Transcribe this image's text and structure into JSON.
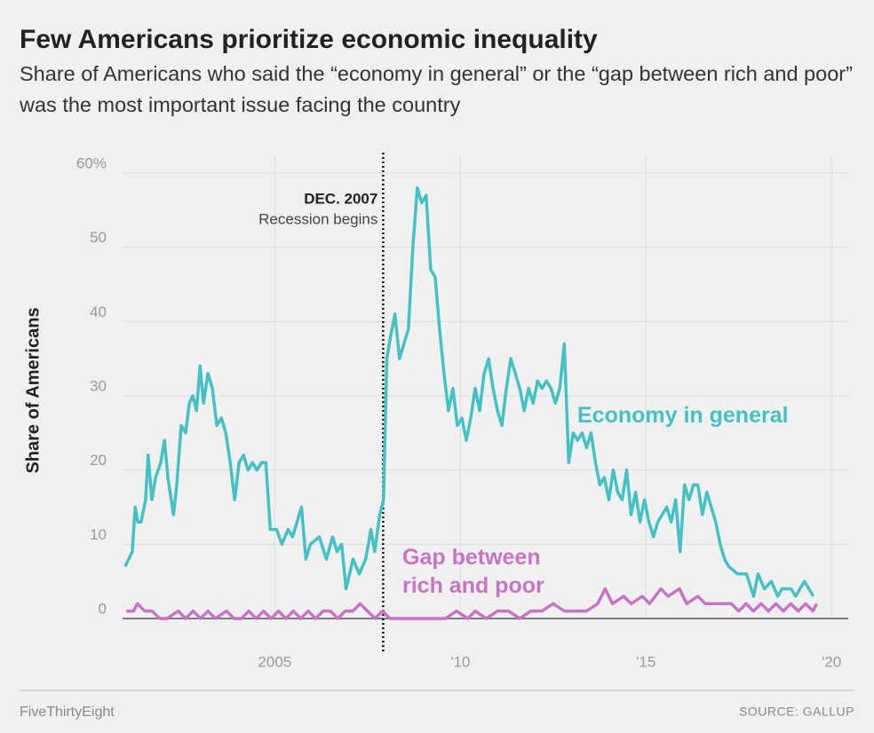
{
  "chart_data": {
    "type": "line",
    "title": "Few Americans prioritize economic inequality",
    "subtitle": "Share of Americans who said the “economy in general” or the “gap between rich and poor” was the most important issue facing the country",
    "y_label": "Share of Americans",
    "xlim": [
      2000.9,
      2020.45
    ],
    "xticks": [
      2005,
      {
        "value": 2010,
        "label": "'10"
      },
      {
        "value": 2015,
        "label": "'15"
      },
      {
        "value": 2020,
        "label": "'20"
      }
    ],
    "ylim": [
      0,
      60
    ],
    "yticks": [
      0,
      10,
      20,
      30,
      40,
      50,
      {
        "value": 60,
        "label": "60%"
      }
    ],
    "grid": true,
    "annotation": {
      "x": 2007.92,
      "title": "DEC. 2007",
      "text": "Recession begins"
    },
    "series": [
      {
        "name": "Economy in general",
        "color": "#45c1c4",
        "x": [
          2000.97,
          2001.16,
          2001.24,
          2001.31,
          2001.4,
          2001.52,
          2001.59,
          2001.69,
          2001.79,
          2001.93,
          2002.03,
          2002.12,
          2002.27,
          2002.36,
          2002.48,
          2002.6,
          2002.7,
          2002.79,
          2002.89,
          2002.99,
          2003.08,
          2003.2,
          2003.32,
          2003.44,
          2003.56,
          2003.68,
          2003.8,
          2003.92,
          2004.04,
          2004.16,
          2004.28,
          2004.4,
          2004.52,
          2004.64,
          2004.76,
          2004.88,
          2005.05,
          2005.19,
          2005.36,
          2005.48,
          2005.6,
          2005.72,
          2005.84,
          2005.96,
          2006.2,
          2006.39,
          2006.56,
          2006.68,
          2006.8,
          2006.92,
          2007.11,
          2007.28,
          2007.45,
          2007.59,
          2007.69,
          2007.83,
          2007.93,
          2008.02,
          2008.12,
          2008.24,
          2008.36,
          2008.48,
          2008.6,
          2008.72,
          2008.84,
          2008.96,
          2009.08,
          2009.2,
          2009.32,
          2009.44,
          2009.56,
          2009.68,
          2009.8,
          2009.92,
          2010.04,
          2010.16,
          2010.28,
          2010.4,
          2010.52,
          2010.64,
          2010.76,
          2010.88,
          2011.0,
          2011.12,
          2011.24,
          2011.36,
          2011.48,
          2011.6,
          2011.72,
          2011.84,
          2011.96,
          2012.08,
          2012.2,
          2012.32,
          2012.44,
          2012.56,
          2012.68,
          2012.8,
          2012.92,
          2013.04,
          2013.16,
          2013.28,
          2013.4,
          2013.52,
          2013.64,
          2013.76,
          2013.88,
          2014.0,
          2014.12,
          2014.24,
          2014.36,
          2014.48,
          2014.6,
          2014.72,
          2014.84,
          2014.96,
          2015.08,
          2015.2,
          2015.32,
          2015.44,
          2015.56,
          2015.68,
          2015.8,
          2015.92,
          2016.04,
          2016.16,
          2016.28,
          2016.4,
          2016.52,
          2016.64,
          2016.76,
          2016.88,
          2017.0,
          2017.12,
          2017.23,
          2017.47,
          2017.71,
          2017.9,
          2018.02,
          2018.19,
          2018.38,
          2018.55,
          2018.67,
          2018.91,
          2019.03,
          2019.15,
          2019.27,
          2019.39,
          2019.51
        ],
        "values": [
          7,
          9,
          15,
          13,
          13,
          16,
          22,
          16,
          19,
          21,
          24,
          19,
          14,
          18,
          26,
          25,
          29,
          30,
          28,
          34,
          29,
          33,
          31,
          26,
          27,
          25,
          21,
          16,
          21,
          22,
          20,
          21,
          20,
          21,
          21,
          12,
          12,
          10,
          12,
          11,
          13,
          15,
          8,
          10,
          11,
          8,
          11,
          9,
          10,
          4,
          8,
          6,
          8,
          12,
          9,
          14,
          16,
          35,
          38,
          41,
          35,
          37,
          39,
          50,
          58,
          56,
          57,
          47,
          46,
          39,
          33,
          28,
          31,
          26,
          27,
          24,
          27,
          31,
          28,
          33,
          35,
          31,
          28,
          26,
          31,
          35,
          33,
          31,
          28,
          31,
          29,
          32,
          31,
          32,
          31,
          29,
          31,
          37,
          21,
          25,
          24,
          25,
          23,
          25,
          21,
          18,
          19,
          16,
          20,
          17,
          16,
          20,
          14,
          17,
          13,
          16,
          13,
          11,
          13,
          14,
          15,
          13,
          16,
          9,
          18,
          16,
          18,
          18,
          14,
          17,
          15,
          13,
          10,
          8,
          7,
          6,
          6,
          3,
          6,
          4,
          5,
          3,
          4,
          4,
          3,
          4,
          5,
          4,
          3
        ]
      },
      {
        "name": "Gap between rich and poor",
        "color": "#c774c4",
        "x": [
          2001.0,
          2001.2,
          2001.3,
          2001.5,
          2001.7,
          2001.9,
          2002.1,
          2002.4,
          2002.6,
          2002.8,
          2003.0,
          2003.2,
          2003.4,
          2003.7,
          2003.9,
          2004.1,
          2004.3,
          2004.5,
          2004.7,
          2004.9,
          2005.1,
          2005.3,
          2005.5,
          2005.7,
          2005.9,
          2006.1,
          2006.3,
          2006.5,
          2006.7,
          2006.9,
          2007.1,
          2007.3,
          2007.5,
          2007.7,
          2007.9,
          2008.1,
          2008.4,
          2008.7,
          2009.0,
          2009.3,
          2009.6,
          2009.9,
          2010.2,
          2010.4,
          2010.7,
          2011.0,
          2011.3,
          2011.6,
          2011.9,
          2012.2,
          2012.5,
          2012.8,
          2013.1,
          2013.4,
          2013.7,
          2013.9,
          2014.1,
          2014.4,
          2014.6,
          2014.9,
          2015.1,
          2015.4,
          2015.6,
          2015.9,
          2016.1,
          2016.4,
          2016.6,
          2016.8,
          2017.0,
          2017.3,
          2017.5,
          2017.7,
          2017.9,
          2018.1,
          2018.3,
          2018.5,
          2018.7,
          2018.9,
          2019.1,
          2019.3,
          2019.5,
          2019.6
        ],
        "values": [
          1,
          1,
          2,
          1,
          1,
          0,
          0,
          1,
          0,
          1,
          0,
          1,
          0,
          1,
          0,
          0,
          1,
          0,
          1,
          0,
          1,
          0,
          1,
          0,
          1,
          0,
          1,
          1,
          0,
          1,
          1,
          2,
          1,
          0,
          1,
          0,
          0,
          0,
          0,
          0,
          0,
          1,
          0,
          1,
          0,
          1,
          1,
          0,
          1,
          1,
          2,
          1,
          1,
          1,
          2,
          4,
          2,
          3,
          2,
          3,
          2,
          4,
          3,
          4,
          2,
          3,
          2,
          2,
          2,
          2,
          1,
          2,
          1,
          2,
          1,
          2,
          1,
          2,
          1,
          2,
          1,
          2
        ]
      }
    ],
    "footer_left": "FiveThirtyEight",
    "footer_right": "SOURCE: GALLUP"
  }
}
